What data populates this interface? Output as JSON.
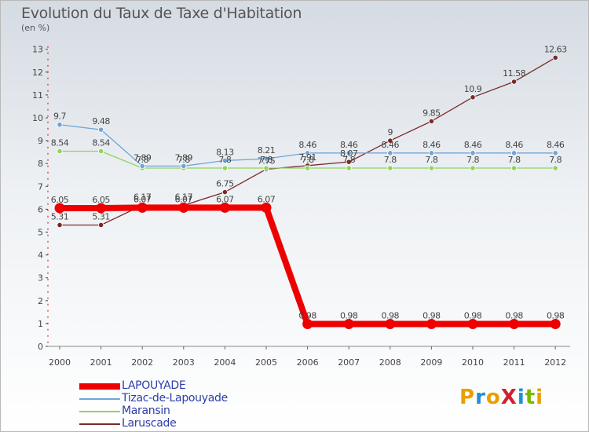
{
  "chart_data": {
    "type": "line",
    "title": "Evolution du Taux de Taxe d'Habitation",
    "subtitle": "(en %)",
    "x": [
      "2000",
      "2001",
      "2002",
      "2003",
      "2004",
      "2005",
      "2006",
      "2007",
      "2008",
      "2009",
      "2010",
      "2011",
      "2012"
    ],
    "ylim": [
      0,
      13
    ],
    "yticks": [
      0,
      1,
      2,
      3,
      4,
      5,
      6,
      7,
      8,
      9,
      10,
      11,
      12,
      13
    ],
    "grid": false,
    "legend_position": "bottom-left",
    "series": [
      {
        "name": "LAPOUYADE",
        "color": "#ee0000",
        "values": [
          6.05,
          6.05,
          6.07,
          6.07,
          6.07,
          6.07,
          0.98,
          0.98,
          0.98,
          0.98,
          0.98,
          0.98,
          0.98
        ],
        "labels": [
          "6.05",
          "6.05",
          "6.07",
          "6.07",
          "6.07",
          "6.07",
          "0.98",
          "0.98",
          "0.98",
          "0.98",
          "0.98",
          "0.98",
          "0.98"
        ]
      },
      {
        "name": "Tizac-de-Lapouyade",
        "color": "#6fa5d6",
        "values": [
          9.7,
          9.48,
          7.89,
          7.89,
          8.13,
          8.21,
          8.46,
          8.46,
          8.46,
          8.46,
          8.46,
          8.46,
          8.46
        ],
        "labels": [
          "9.7",
          "9.48",
          "7.89",
          "7.89",
          "8.13",
          "8.21",
          "8.46",
          "8.46",
          "8.46",
          "8.46",
          "8.46",
          "8.46",
          "8.46"
        ]
      },
      {
        "name": "Maransin",
        "color": "#8fd45f",
        "values": [
          8.54,
          8.54,
          7.8,
          7.8,
          7.8,
          7.8,
          7.8,
          7.8,
          7.8,
          7.8,
          7.8,
          7.8,
          7.8
        ],
        "labels": [
          "8.54",
          "8.54",
          "7.8",
          "7.8",
          "7.8",
          "7.8",
          "7.8",
          "7.8",
          "7.8",
          "7.8",
          "7.8",
          "7.8",
          "7.8"
        ]
      },
      {
        "name": "Laruscade",
        "color": "#7a2a2a",
        "values": [
          5.31,
          5.31,
          6.17,
          6.17,
          6.75,
          7.75,
          7.91,
          8.07,
          9,
          9.85,
          10.9,
          11.58,
          12.63
        ],
        "labels": [
          "5.31",
          "5.31",
          "6.17",
          "6.17",
          "6.75",
          "7.75",
          "7.91",
          "8.07",
          "9",
          "9.85",
          "10.9",
          "11.58",
          "12.63"
        ]
      }
    ]
  },
  "legend": {
    "items": [
      {
        "label": "LAPOUYADE",
        "color": "#ee0000"
      },
      {
        "label": "Tizac-de-Lapouyade",
        "color": "#6fa5d6"
      },
      {
        "label": "Maransin",
        "color": "#8fd45f"
      },
      {
        "label": "Laruscade",
        "color": "#7a2a2a"
      }
    ]
  },
  "brand": {
    "text": "ProXiti",
    "letter_colors": [
      "#e8a000",
      "#1f8fd6",
      "#e8a000",
      "#d02030",
      "#1f8fd6",
      "#7ab800",
      "#e8a000"
    ]
  }
}
